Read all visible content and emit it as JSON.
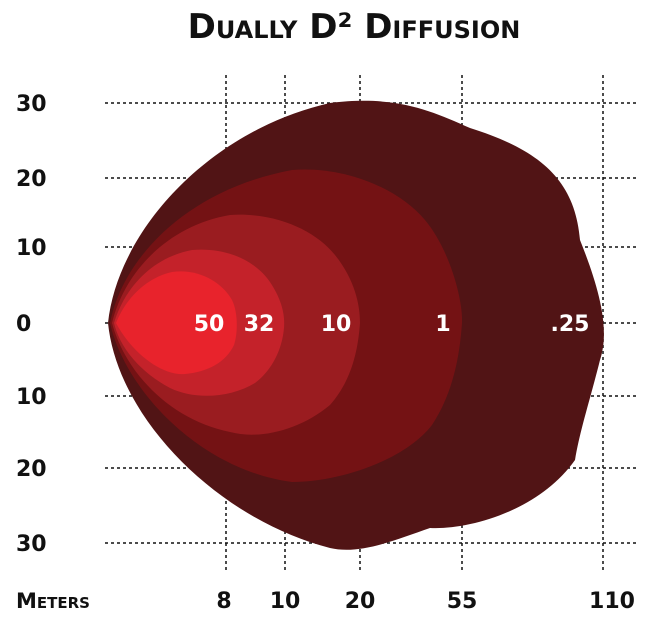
{
  "chart_data": {
    "type": "area",
    "title": "Dually D² Diffusion",
    "x_unit_label": "Meters",
    "x_ticks": [
      "8",
      "10",
      "20",
      "55",
      "110"
    ],
    "y_ticks": [
      "30",
      "20",
      "10",
      "0",
      "10",
      "20",
      "30"
    ],
    "grid": true,
    "zones": [
      {
        "label": ".25",
        "reach_m": 110,
        "half_width": 30,
        "color": "#511415"
      },
      {
        "label": "1",
        "reach_m": 55,
        "half_width": 21,
        "color": "#741214"
      },
      {
        "label": "10",
        "reach_m": 20,
        "half_width": 15,
        "color": "#9a1c20"
      },
      {
        "label": "32",
        "reach_m": 10,
        "half_width": 10,
        "color": "#c4222a"
      },
      {
        "label": "50",
        "reach_m": 8,
        "half_width": 7,
        "color": "#e8232c"
      }
    ]
  }
}
